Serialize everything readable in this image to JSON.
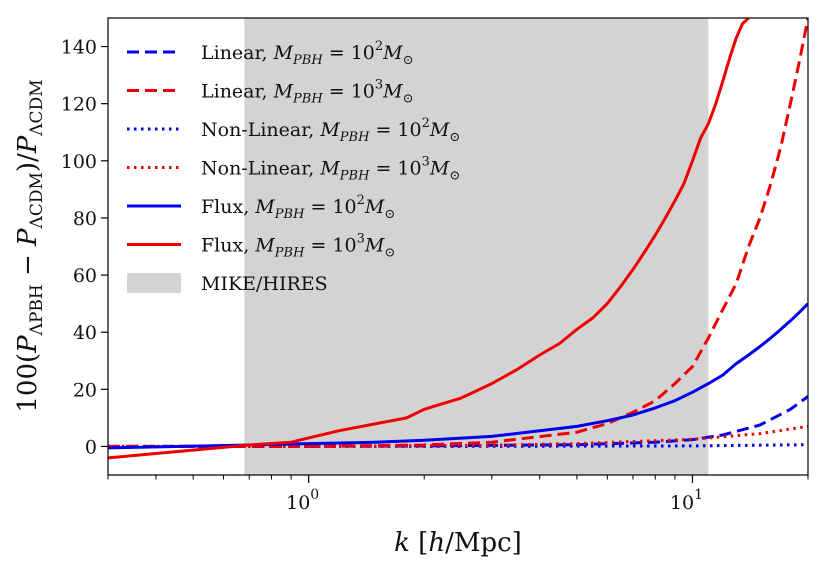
{
  "chart_data": {
    "type": "line",
    "title": "",
    "xlabel": "k [h/Mpc]",
    "ylabel": "100(P_ΛPBH − P_ΛCDM)/P_ΛCDM",
    "xscale": "log",
    "xlim": [
      0.3,
      20
    ],
    "ylim": [
      -10,
      150
    ],
    "xticks": [
      {
        "value": 1,
        "label": "10",
        "exp": "0"
      },
      {
        "value": 10,
        "label": "10",
        "exp": "1"
      }
    ],
    "yticks": [
      0,
      20,
      40,
      60,
      80,
      100,
      120,
      140
    ],
    "shaded_region": {
      "label": "MIKE/HIRES",
      "x_range": [
        0.68,
        11
      ],
      "color": "#d3d3d3"
    },
    "series": [
      {
        "name": "Linear, M_PBH = 10^2 M_⊙",
        "label_main": "Linear, ",
        "mass_exp": "2",
        "color": "#0000ee",
        "dash": "dashed",
        "x": [
          0.3,
          1,
          2,
          5,
          8,
          10,
          12,
          15,
          18,
          20
        ],
        "y": [
          0,
          0.05,
          0.2,
          0.6,
          1.5,
          2.4,
          4,
          7.5,
          13,
          17.5
        ]
      },
      {
        "name": "Linear, M_PBH = 10^3 M_⊙",
        "label_main": "Linear, ",
        "mass_exp": "3",
        "color": "#ee0000",
        "dash": "dashed",
        "x": [
          0.3,
          1,
          2,
          3,
          5,
          6,
          7,
          8,
          9,
          10,
          11,
          12,
          13,
          14,
          15,
          16,
          17,
          18,
          19,
          20
        ],
        "y": [
          0,
          0,
          0.5,
          1.5,
          5,
          8,
          12,
          16,
          22,
          28,
          38,
          48,
          57,
          70,
          80,
          92,
          105,
          120,
          135,
          150
        ]
      },
      {
        "name": "Non-Linear, M_PBH = 10^2 M_⊙",
        "label_main": "Non-Linear, ",
        "mass_exp": "2",
        "color": "#0000ee",
        "dash": "dotted",
        "x": [
          0.3,
          1,
          3,
          10,
          20
        ],
        "y": [
          0,
          0,
          0.05,
          0.2,
          0.6
        ]
      },
      {
        "name": "Non-Linear, M_PBH = 10^3 M_⊙",
        "label_main": "Non-Linear, ",
        "mass_exp": "3",
        "color": "#ee0000",
        "dash": "dotted",
        "x": [
          0.3,
          1,
          3,
          5,
          10,
          15,
          20
        ],
        "y": [
          0,
          0.05,
          0.4,
          1,
          2.5,
          4.5,
          7
        ]
      },
      {
        "name": "Flux, M_PBH = 10^2 M_⊙",
        "label_main": "Flux, ",
        "mass_exp": "2",
        "color": "#0000ee",
        "dash": "solid",
        "x": [
          0.3,
          0.7,
          1,
          1.5,
          2,
          3,
          4,
          5,
          6,
          7,
          8,
          9,
          10,
          11,
          12,
          13,
          14,
          15,
          16,
          17,
          18,
          19,
          20
        ],
        "y": [
          -0.5,
          0.5,
          1,
          1.5,
          2.2,
          3.5,
          5.5,
          7,
          9,
          11,
          13.5,
          16,
          19,
          22,
          25,
          29,
          32,
          35,
          38,
          41,
          44,
          47,
          50
        ]
      },
      {
        "name": "Flux, M_PBH = 10^3 M_⊙",
        "label_main": "Flux, ",
        "mass_exp": "3",
        "color": "#ee0000",
        "dash": "solid",
        "x": [
          0.3,
          0.7,
          0.9,
          1,
          1.2,
          1.5,
          1.8,
          2,
          2.5,
          3,
          3.5,
          4,
          4.5,
          5,
          5.5,
          6,
          6.5,
          7,
          7.5,
          8,
          8.5,
          9,
          9.5,
          10,
          10.5,
          11,
          11.5,
          12,
          12.5,
          13,
          13.5,
          14
        ],
        "y": [
          -4,
          0.5,
          1.5,
          3,
          5.5,
          8,
          10,
          13,
          17,
          22,
          27,
          32,
          36,
          41,
          45,
          50,
          56,
          62,
          68,
          74,
          80,
          86,
          92,
          100,
          108,
          113,
          120,
          128,
          136,
          143,
          148,
          150
        ]
      }
    ],
    "legend": {
      "location": "upper-left",
      "shade_label": "MIKE/HIRES"
    }
  },
  "symbols": {
    "mass_symbol": "M",
    "mass_sub": "PBH",
    "equals": " = ",
    "base": "10",
    "solar": "M",
    "solar_sub": "⊙"
  }
}
